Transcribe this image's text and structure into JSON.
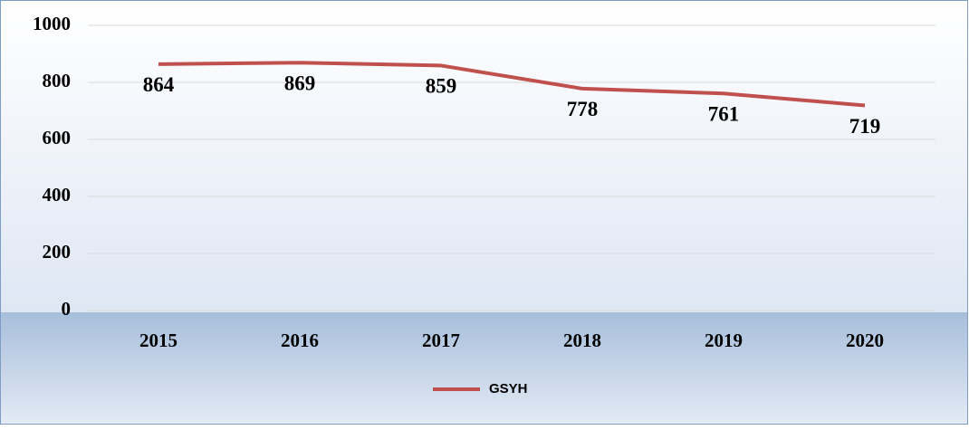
{
  "chart_data": {
    "type": "line",
    "categories": [
      "2015",
      "2016",
      "2017",
      "2018",
      "2019",
      "2020"
    ],
    "series": [
      {
        "name": "GSYH",
        "color": "#c0504d",
        "values": [
          864,
          869,
          859,
          778,
          761,
          719
        ]
      }
    ],
    "ylim": [
      0,
      1000
    ],
    "yticks": [
      0,
      200,
      400,
      600,
      800,
      1000
    ],
    "grid": true,
    "legend": "bottom"
  }
}
